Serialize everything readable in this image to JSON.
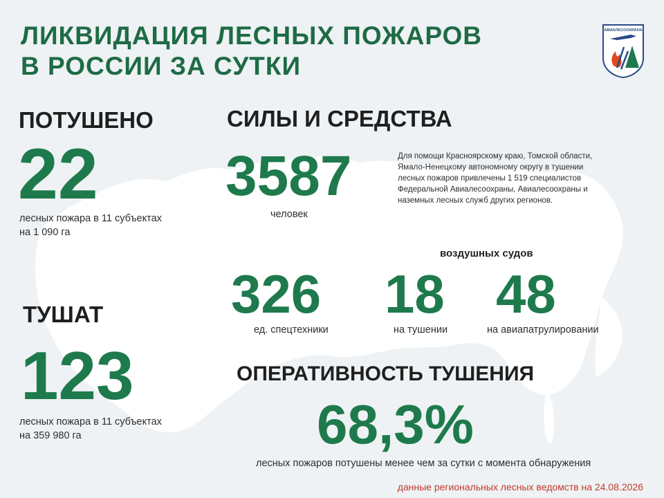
{
  "header": {
    "title_line1": "ЛИКВИДАЦИЯ ЛЕСНЫХ ПОЖАРОВ",
    "title_line2": "В РОССИИ ЗА СУТКИ"
  },
  "logo": {
    "text": "АВИАЛЕСООХРАНА",
    "icon": "avialesookhrana-emblem-icon"
  },
  "extinguished": {
    "heading": "ПОТУШЕНО",
    "value": "22",
    "caption_line1": "лесных пожара в 11 субъектах",
    "caption_line2": "на 1 090 га"
  },
  "forces": {
    "heading": "СИЛЫ И СРЕДСТВА",
    "people_value": "3587",
    "people_caption": "человек",
    "note_lines": [
      "Для помощи Красноярскому краю, Томской области,",
      "Ямало-Ненецкому  автономному  округу в тушении",
      "лесных пожаров привлечены  1 519 специалистов",
      "Федеральной Авиалесоохраны,  Авиалесоохраны  и",
      "наземных лесных служб других регионов."
    ]
  },
  "equipment": {
    "value": "326",
    "caption": "ед. спецтехники"
  },
  "aircraft": {
    "heading": "воздушных судов",
    "firefighting_value": "18",
    "firefighting_caption": "на тушении",
    "patrol_value": "48",
    "patrol_caption": "на авиапатрулировании"
  },
  "active": {
    "heading": "ТУШАТ",
    "value": "123",
    "caption_line1": "лесных пожара в 11 субъектах",
    "caption_line2": "на   359 980 га"
  },
  "efficiency": {
    "heading": "ОПЕРАТИВНОСТЬ ТУШЕНИЯ",
    "value": "68,3%",
    "caption": "лесных  пожаров потушены  менее чем за сутки  с момента обнаружения"
  },
  "footer": {
    "source": "данные региональных лесных ведомств на 24.08.2026"
  },
  "colors": {
    "accent_green": "#1e7a4c",
    "title_green": "#1e6b45",
    "footer_red": "#c0392b",
    "background": "#eef2f4",
    "map": "#ffffff"
  }
}
